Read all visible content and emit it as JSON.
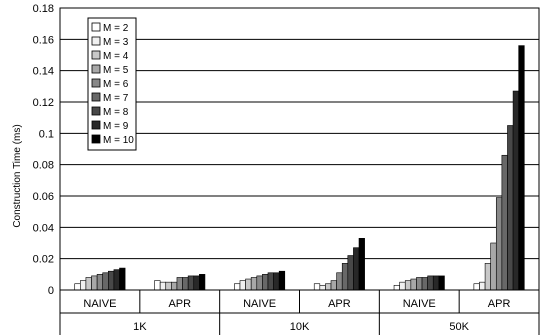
{
  "chart_data": {
    "type": "bar",
    "title": "",
    "xlabel": "",
    "ylabel": "Construction Time (ms)",
    "ylim": [
      0,
      0.18
    ],
    "yticks": [
      "0",
      "0.02",
      "0.04",
      "0.06",
      "0.08",
      "0.1",
      "0.12",
      "0.14",
      "0.16",
      "0.18"
    ],
    "grid": true,
    "legend_position": "top-left",
    "groups": [
      {
        "label": "1K",
        "methods": [
          "NAIVE",
          "APR"
        ]
      },
      {
        "label": "10K",
        "methods": [
          "NAIVE",
          "APR"
        ]
      },
      {
        "label": "50K",
        "methods": [
          "NAIVE",
          "APR"
        ]
      }
    ],
    "categories": [
      "NAIVE",
      "APR",
      "NAIVE",
      "APR",
      "NAIVE",
      "APR"
    ],
    "series": [
      {
        "name": "M = 2",
        "color": "#ffffff",
        "values": [
          0.004,
          0.006,
          0.004,
          0.004,
          0.003,
          0.004
        ]
      },
      {
        "name": "M = 3",
        "color": "#f0f0f0",
        "values": [
          0.006,
          0.005,
          0.006,
          0.003,
          0.005,
          0.005
        ]
      },
      {
        "name": "M = 4",
        "color": "#c8c8c8",
        "values": [
          0.008,
          0.005,
          0.007,
          0.004,
          0.006,
          0.017
        ]
      },
      {
        "name": "M = 5",
        "color": "#a8a8a8",
        "values": [
          0.009,
          0.005,
          0.008,
          0.006,
          0.007,
          0.03
        ]
      },
      {
        "name": "M = 6",
        "color": "#888888",
        "values": [
          0.01,
          0.008,
          0.009,
          0.011,
          0.008,
          0.059
        ]
      },
      {
        "name": "M = 7",
        "color": "#686868",
        "values": [
          0.011,
          0.008,
          0.01,
          0.017,
          0.008,
          0.086
        ]
      },
      {
        "name": "M = 8",
        "color": "#484848",
        "values": [
          0.012,
          0.009,
          0.011,
          0.022,
          0.009,
          0.105
        ]
      },
      {
        "name": "M = 9",
        "color": "#282828",
        "values": [
          0.013,
          0.009,
          0.011,
          0.027,
          0.009,
          0.127
        ]
      },
      {
        "name": "M = 10",
        "color": "#000000",
        "values": [
          0.014,
          0.01,
          0.012,
          0.033,
          0.009,
          0.156
        ]
      }
    ]
  }
}
